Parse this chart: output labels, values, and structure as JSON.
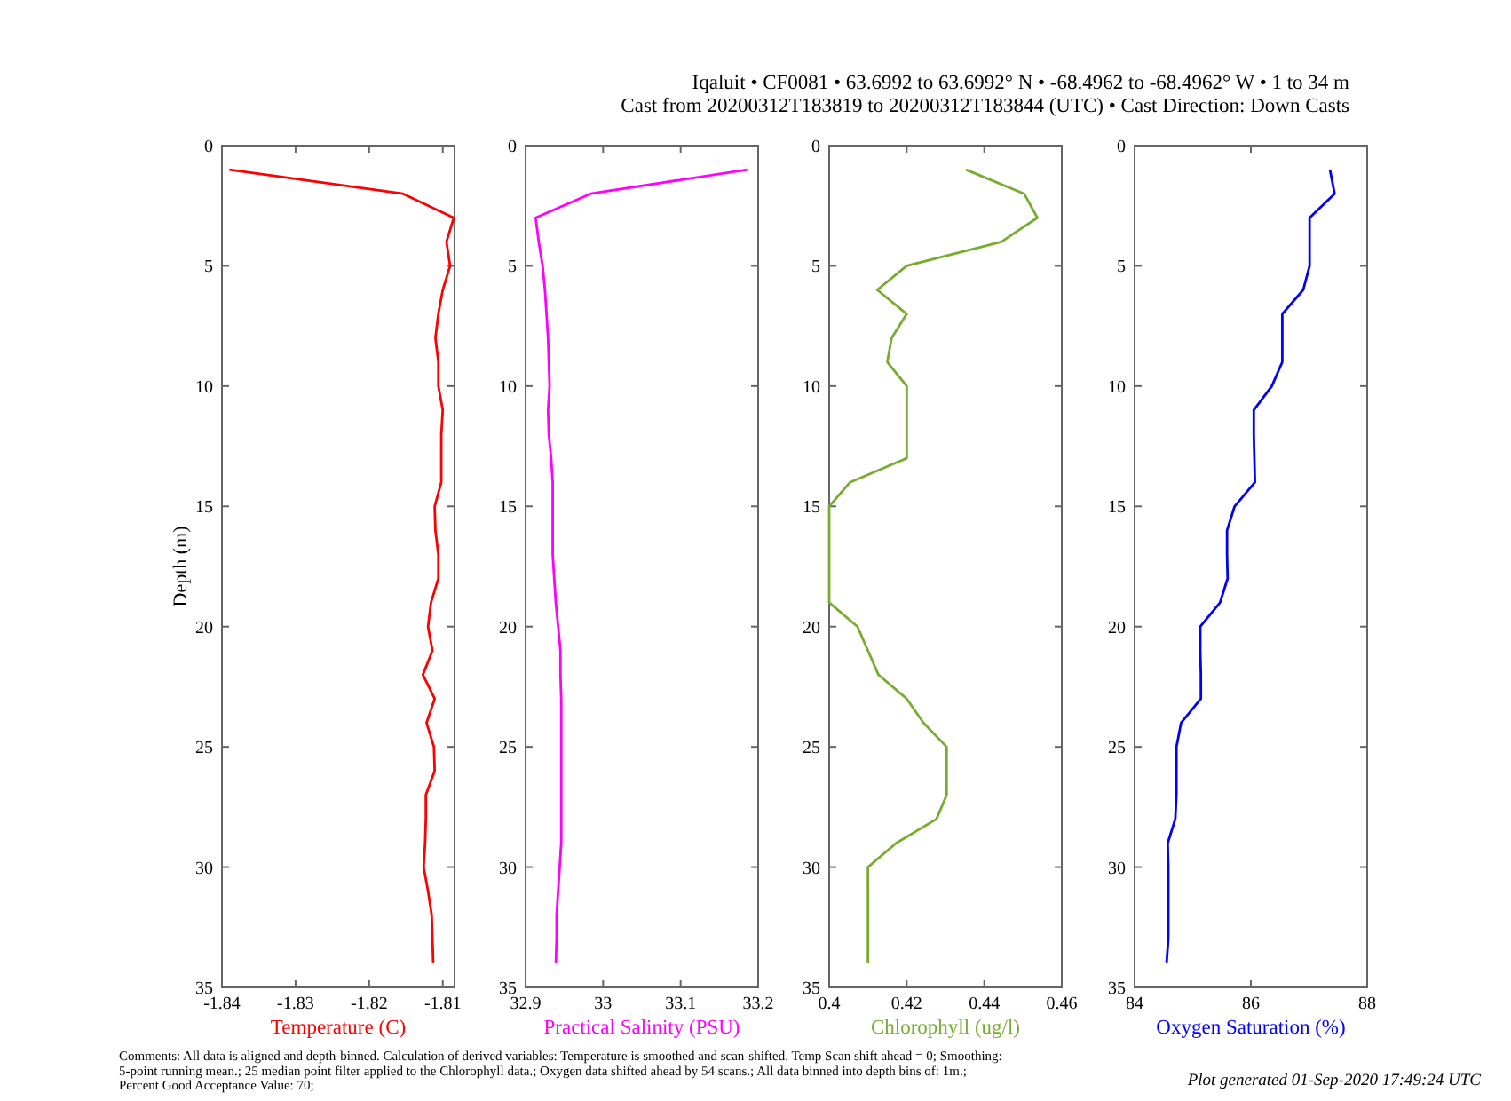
{
  "chart_data": [
    {
      "type": "line",
      "xlabel": "Temperature (C)",
      "ylabel": "Depth (m)",
      "xlim": [
        -1.84,
        -1.8084
      ],
      "xticks": [
        -1.84,
        -1.83,
        -1.82,
        -1.81
      ],
      "ylim": [
        35,
        0
      ],
      "yticks": [
        0,
        5,
        10,
        15,
        20,
        25,
        30,
        35
      ],
      "grid": false,
      "series": [
        {
          "color": "#ff0000",
          "x": [
            -1.839,
            -1.8154,
            -1.8085,
            -1.8095,
            -1.809,
            -1.81,
            -1.8106,
            -1.811,
            -1.8106,
            -1.8106,
            -1.81,
            -1.8102,
            -1.8102,
            -1.8102,
            -1.8111,
            -1.811,
            -1.8106,
            -1.8106,
            -1.8116,
            -1.812,
            -1.8114,
            -1.8127,
            -1.8111,
            -1.8122,
            -1.8112,
            -1.8111,
            -1.8123,
            -1.8123,
            -1.8124,
            -1.8126,
            -1.812,
            -1.8115,
            -1.8114,
            -1.8113
          ],
          "values": [
            1,
            2,
            3,
            4,
            5,
            6,
            7,
            8,
            9,
            10,
            11,
            12,
            13,
            14,
            15,
            16,
            17,
            18,
            19,
            20,
            21,
            22,
            23,
            24,
            25,
            26,
            27,
            28,
            29,
            30,
            31,
            32,
            33,
            34
          ]
        }
      ]
    },
    {
      "type": "line",
      "xlabel": "Practical Salinity (PSU)",
      "xlim": [
        32.9,
        33.2
      ],
      "xticks": [
        32.9,
        33,
        33.1,
        33.2
      ],
      "ylim": [
        35,
        0
      ],
      "yticks": [
        0,
        5,
        10,
        15,
        20,
        25,
        30,
        35
      ],
      "grid": false,
      "series": [
        {
          "color": "#ff00ff",
          "x": [
            33.186,
            32.984,
            32.913,
            32.917,
            32.922,
            32.925,
            32.927,
            32.929,
            32.93,
            32.931,
            32.929,
            32.93,
            32.933,
            32.935,
            32.935,
            32.935,
            32.935,
            32.937,
            32.939,
            32.942,
            32.945,
            32.945,
            32.946,
            32.946,
            32.946,
            32.946,
            32.946,
            32.946,
            32.946,
            32.944,
            32.942,
            32.94,
            32.94,
            32.939
          ],
          "values": [
            1,
            2,
            3,
            4,
            5,
            6,
            7,
            8,
            9,
            10,
            11,
            12,
            13,
            14,
            15,
            16,
            17,
            18,
            19,
            20,
            21,
            22,
            23,
            24,
            25,
            26,
            27,
            28,
            29,
            30,
            31,
            32,
            33,
            34
          ]
        }
      ]
    },
    {
      "type": "line",
      "xlabel": "Chlorophyll (ug/l)",
      "xlim": [
        0.4,
        0.46
      ],
      "xticks": [
        0.4,
        0.42,
        0.44,
        0.46
      ],
      "ylim": [
        35,
        0
      ],
      "yticks": [
        0,
        5,
        10,
        15,
        20,
        25,
        30,
        35
      ],
      "grid": false,
      "series": [
        {
          "color": "#77ac30",
          "x": [
            0.4353,
            0.4503,
            0.4537,
            0.4444,
            0.42,
            0.4124,
            0.42,
            0.4161,
            0.415,
            0.42,
            0.42,
            0.42,
            0.42,
            0.4054,
            0.4,
            0.4,
            0.4,
            0.4,
            0.4,
            0.4073,
            0.41,
            0.4127,
            0.42,
            0.4243,
            0.4303,
            0.4303,
            0.4303,
            0.4277,
            0.4173,
            0.41,
            0.41,
            0.41,
            0.41,
            0.41
          ],
          "values": [
            1,
            2,
            3,
            4,
            5,
            6,
            7,
            8,
            9,
            10,
            11,
            12,
            13,
            14,
            15,
            16,
            17,
            18,
            19,
            20,
            21,
            22,
            23,
            24,
            25,
            26,
            27,
            28,
            29,
            30,
            31,
            32,
            33,
            34
          ]
        }
      ]
    },
    {
      "type": "line",
      "xlabel": "Oxygen Saturation (%)",
      "xlim": [
        84,
        88
      ],
      "xticks": [
        84,
        86,
        88
      ],
      "ylim": [
        35,
        0
      ],
      "yticks": [
        0,
        5,
        10,
        15,
        20,
        25,
        30,
        35
      ],
      "grid": false,
      "annotations": [
        "Iqaluit • CF0081 • 63.6992 to 63.6992° N • -68.4962 to -68.4962° W • 1 to 34 m",
        "Cast from 20200312T183819 to 20200312T183844 (UTC) • Cast Direction: Down Casts",
        "Comments: All data is aligned and depth-binned. Calculation of derived variables: Temperature is smoothed and scan-shifted. Temp Scan shift ahead = 0; Smoothing: 5-point running mean.; 25 median point filter applied to the Chlorophyll data.; Oxygen data shifted ahead by 54 scans.; All data binned into depth bins of: 1m.; Percent Good Acceptance Value: 70;",
        "Plot generated 01-Sep-2020 17:49:24 UTC"
      ],
      "series": [
        {
          "color": "#0000ff",
          "x": [
            87.36,
            87.44,
            87.01,
            87.01,
            87.01,
            86.9,
            86.54,
            86.54,
            86.54,
            86.36,
            86.05,
            86.05,
            86.06,
            86.07,
            85.72,
            85.59,
            85.59,
            85.6,
            85.47,
            85.13,
            85.13,
            85.14,
            85.14,
            84.8,
            84.72,
            84.72,
            84.72,
            84.7,
            84.57,
            84.58,
            84.58,
            84.58,
            84.58,
            84.55
          ],
          "values": [
            1,
            2,
            3,
            4,
            5,
            6,
            7,
            8,
            9,
            10,
            11,
            12,
            13,
            14,
            15,
            16,
            17,
            18,
            19,
            20,
            21,
            22,
            23,
            24,
            25,
            26,
            27,
            28,
            29,
            30,
            31,
            32,
            33,
            34
          ]
        }
      ]
    }
  ]
}
